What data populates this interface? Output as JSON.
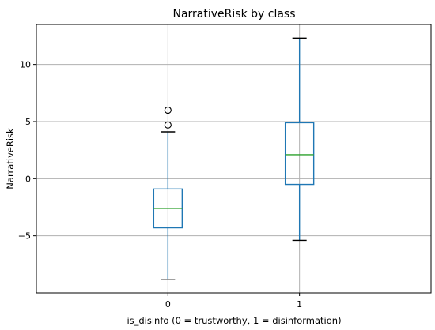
{
  "chart_data": {
    "type": "box",
    "title": "NarrativeRisk by class",
    "xlabel": "is_disinfo (0 = trustworthy, 1 = disinformation)",
    "ylabel": "NarrativeRisk",
    "categories": [
      "0",
      "1"
    ],
    "ylim": [
      -10,
      13.5
    ],
    "yticks": [
      -5,
      0,
      5,
      10
    ],
    "ytick_labels": [
      "−5",
      "0",
      "5",
      "10"
    ],
    "grid": true,
    "boxes": [
      {
        "category": "0",
        "whisker_low": -8.8,
        "q1": -4.3,
        "median": -2.6,
        "q3": -0.9,
        "whisker_high": 4.1,
        "outliers": [
          4.7,
          6.0
        ]
      },
      {
        "category": "1",
        "whisker_low": -5.4,
        "q1": -0.5,
        "median": 2.1,
        "q3": 4.9,
        "whisker_high": 12.3,
        "outliers": []
      }
    ],
    "colors": {
      "box": "#1f77b4",
      "median": "#2ca02c",
      "grid": "#b0b0b0",
      "axes": "#000000",
      "outlier": "#000000"
    }
  }
}
